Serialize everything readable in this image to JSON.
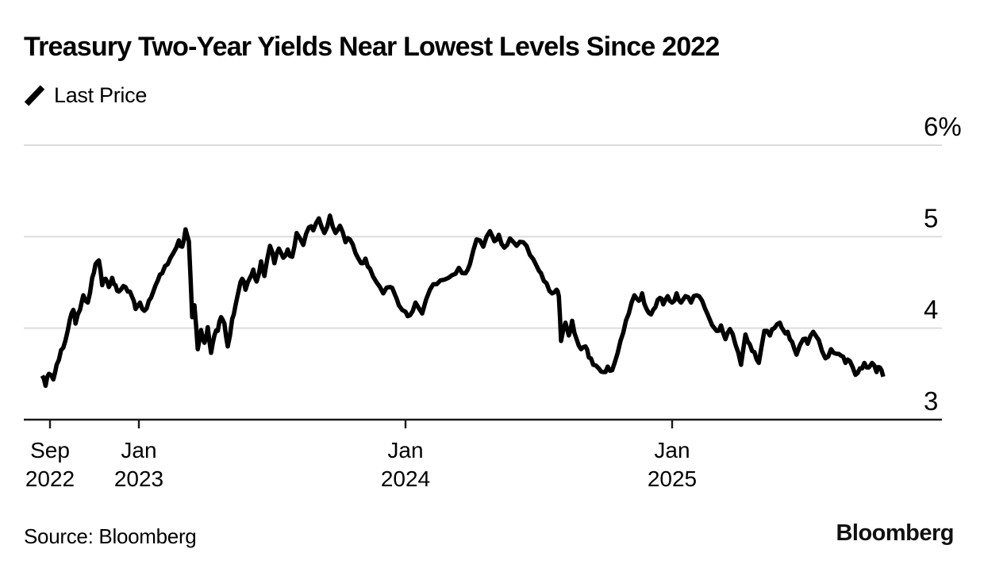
{
  "header": {
    "title": "Treasury Two-Year Yields Near Lowest Levels Since 2022"
  },
  "legend": {
    "label": "Last Price"
  },
  "footer": {
    "source": "Source: Bloomberg",
    "brand": "Bloomberg"
  },
  "colors": {
    "line": "#000000",
    "grid": "#dcdcdc",
    "axis": "#1a1a1a",
    "text": "#000000"
  },
  "chart_data": {
    "type": "line",
    "title": "Treasury Two-Year Yields Near Lowest Levels Since 2022",
    "series_name": "Last Price",
    "unit": "%",
    "x_unit": "months since Sep 2022",
    "ylim": [
      3,
      6
    ],
    "grid": "horizontal",
    "legend_position": "top-left",
    "y_ticks": [
      {
        "value": 6,
        "label": "6%"
      },
      {
        "value": 5,
        "label": "5"
      },
      {
        "value": 4,
        "label": "4"
      },
      {
        "value": 3,
        "label": "3"
      }
    ],
    "x_ticks": [
      {
        "m": 0,
        "line1": "Sep",
        "line2": "2022"
      },
      {
        "m": 4,
        "line1": "Jan",
        "line2": "2023"
      },
      {
        "m": 16,
        "line1": "Jan",
        "line2": "2024"
      },
      {
        "m": 28,
        "line1": "Jan",
        "line2": "2025"
      }
    ],
    "points": [
      [
        -0.35,
        3.48
      ],
      [
        -0.2,
        3.37
      ],
      [
        -0.05,
        3.5
      ],
      [
        0.15,
        3.44
      ],
      [
        0.3,
        3.6
      ],
      [
        0.5,
        3.76
      ],
      [
        0.7,
        3.87
      ],
      [
        0.9,
        4.1
      ],
      [
        1.05,
        4.2
      ],
      [
        1.15,
        4.05
      ],
      [
        1.35,
        4.2
      ],
      [
        1.5,
        4.36
      ],
      [
        1.7,
        4.28
      ],
      [
        1.9,
        4.55
      ],
      [
        2.05,
        4.7
      ],
      [
        2.2,
        4.74
      ],
      [
        2.35,
        4.47
      ],
      [
        2.5,
        4.54
      ],
      [
        2.65,
        4.45
      ],
      [
        2.8,
        4.55
      ],
      [
        2.95,
        4.47
      ],
      [
        3.1,
        4.4
      ],
      [
        3.3,
        4.46
      ],
      [
        3.5,
        4.4
      ],
      [
        3.7,
        4.34
      ],
      [
        3.85,
        4.21
      ],
      [
        4.05,
        4.28
      ],
      [
        4.25,
        4.19
      ],
      [
        4.45,
        4.3
      ],
      [
        4.65,
        4.4
      ],
      [
        4.85,
        4.52
      ],
      [
        5.05,
        4.6
      ],
      [
        5.3,
        4.7
      ],
      [
        5.55,
        4.82
      ],
      [
        5.8,
        4.96
      ],
      [
        5.95,
        4.89
      ],
      [
        6.1,
        5.08
      ],
      [
        6.25,
        4.95
      ],
      [
        6.4,
        4.12
      ],
      [
        6.5,
        4.25
      ],
      [
        6.65,
        3.77
      ],
      [
        6.8,
        3.98
      ],
      [
        6.95,
        3.84
      ],
      [
        7.1,
        4.01
      ],
      [
        7.25,
        3.73
      ],
      [
        7.4,
        3.92
      ],
      [
        7.55,
        3.97
      ],
      [
        7.7,
        4.12
      ],
      [
        7.85,
        4.05
      ],
      [
        8.0,
        3.8
      ],
      [
        8.2,
        4.1
      ],
      [
        8.35,
        4.25
      ],
      [
        8.5,
        4.42
      ],
      [
        8.65,
        4.54
      ],
      [
        8.8,
        4.42
      ],
      [
        9.0,
        4.55
      ],
      [
        9.15,
        4.64
      ],
      [
        9.3,
        4.51
      ],
      [
        9.5,
        4.73
      ],
      [
        9.65,
        4.57
      ],
      [
        9.9,
        4.9
      ],
      [
        10.1,
        4.71
      ],
      [
        10.3,
        4.87
      ],
      [
        10.5,
        4.77
      ],
      [
        10.7,
        4.86
      ],
      [
        10.9,
        4.78
      ],
      [
        11.1,
        5.04
      ],
      [
        11.4,
        4.91
      ],
      [
        11.65,
        5.1
      ],
      [
        11.85,
        5.07
      ],
      [
        12.1,
        5.2
      ],
      [
        12.35,
        5.04
      ],
      [
        12.6,
        5.23
      ],
      [
        12.85,
        5.04
      ],
      [
        13.05,
        5.12
      ],
      [
        13.3,
        4.94
      ],
      [
        13.5,
        4.97
      ],
      [
        13.75,
        4.82
      ],
      [
        14.0,
        4.71
      ],
      [
        14.2,
        4.76
      ],
      [
        14.4,
        4.65
      ],
      [
        14.7,
        4.5
      ],
      [
        15.0,
        4.38
      ],
      [
        15.3,
        4.45
      ],
      [
        15.5,
        4.38
      ],
      [
        15.7,
        4.25
      ],
      [
        16.0,
        4.18
      ],
      [
        16.2,
        4.14
      ],
      [
        16.45,
        4.28
      ],
      [
        16.75,
        4.16
      ],
      [
        17.1,
        4.42
      ],
      [
        17.4,
        4.48
      ],
      [
        17.75,
        4.53
      ],
      [
        18.1,
        4.58
      ],
      [
        18.4,
        4.66
      ],
      [
        18.7,
        4.6
      ],
      [
        18.9,
        4.7
      ],
      [
        19.2,
        4.97
      ],
      [
        19.5,
        4.89
      ],
      [
        19.8,
        5.06
      ],
      [
        20.0,
        4.95
      ],
      [
        20.2,
        5.02
      ],
      [
        20.45,
        4.88
      ],
      [
        20.7,
        4.98
      ],
      [
        21.0,
        4.9
      ],
      [
        21.3,
        4.94
      ],
      [
        21.6,
        4.8
      ],
      [
        21.9,
        4.68
      ],
      [
        22.1,
        4.6
      ],
      [
        22.35,
        4.49
      ],
      [
        22.6,
        4.38
      ],
      [
        22.8,
        4.42
      ],
      [
        22.9,
        4.35
      ],
      [
        23.0,
        3.86
      ],
      [
        23.2,
        4.06
      ],
      [
        23.35,
        3.92
      ],
      [
        23.5,
        4.08
      ],
      [
        23.7,
        3.88
      ],
      [
        23.9,
        3.77
      ],
      [
        24.1,
        3.8
      ],
      [
        24.25,
        3.68
      ],
      [
        24.45,
        3.6
      ],
      [
        24.7,
        3.56
      ],
      [
        24.9,
        3.52
      ],
      [
        25.1,
        3.58
      ],
      [
        25.3,
        3.54
      ],
      [
        25.55,
        3.73
      ],
      [
        25.8,
        3.95
      ],
      [
        26.05,
        4.16
      ],
      [
        26.3,
        4.36
      ],
      [
        26.5,
        4.3
      ],
      [
        26.65,
        4.38
      ],
      [
        26.85,
        4.21
      ],
      [
        27.05,
        4.15
      ],
      [
        27.25,
        4.23
      ],
      [
        27.45,
        4.33
      ],
      [
        27.6,
        4.26
      ],
      [
        27.8,
        4.35
      ],
      [
        28.0,
        4.28
      ],
      [
        28.2,
        4.38
      ],
      [
        28.4,
        4.28
      ],
      [
        28.6,
        4.35
      ],
      [
        28.85,
        4.28
      ],
      [
        29.1,
        4.36
      ],
      [
        29.35,
        4.3
      ],
      [
        29.6,
        4.15
      ],
      [
        30.0,
        3.97
      ],
      [
        30.2,
        4.03
      ],
      [
        30.4,
        3.88
      ],
      [
        30.6,
        3.99
      ],
      [
        30.85,
        3.82
      ],
      [
        31.1,
        3.6
      ],
      [
        31.3,
        3.93
      ],
      [
        31.5,
        3.82
      ],
      [
        31.7,
        3.74
      ],
      [
        31.9,
        3.62
      ],
      [
        32.15,
        3.97
      ],
      [
        32.4,
        3.92
      ],
      [
        32.6,
        4.0
      ],
      [
        32.85,
        4.06
      ],
      [
        33.0,
        3.98
      ],
      [
        33.2,
        3.96
      ],
      [
        33.4,
        3.85
      ],
      [
        33.6,
        3.71
      ],
      [
        33.9,
        3.88
      ],
      [
        34.1,
        3.83
      ],
      [
        34.35,
        3.96
      ],
      [
        34.6,
        3.87
      ],
      [
        34.9,
        3.67
      ],
      [
        35.15,
        3.77
      ],
      [
        35.4,
        3.72
      ],
      [
        35.6,
        3.7
      ],
      [
        35.8,
        3.62
      ],
      [
        36.0,
        3.64
      ],
      [
        36.25,
        3.49
      ],
      [
        36.45,
        3.56
      ],
      [
        36.65,
        3.62
      ],
      [
        36.85,
        3.57
      ],
      [
        37.0,
        3.62
      ],
      [
        37.2,
        3.52
      ],
      [
        37.35,
        3.57
      ],
      [
        37.5,
        3.47
      ]
    ]
  }
}
